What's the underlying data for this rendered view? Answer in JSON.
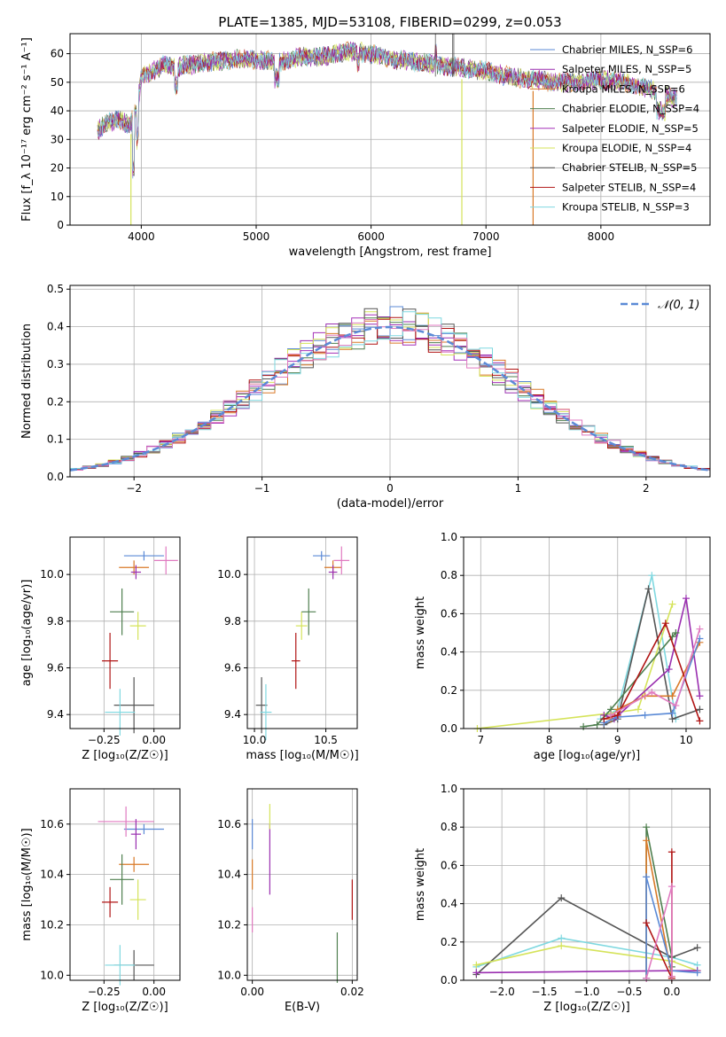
{
  "figure_title": "PLATE=1385, MJD=53108, FIBERID=0299, z=0.053",
  "colors": {
    "chabrier_miles": "#5b8ad6",
    "salpeter_miles": "#9a2fb0",
    "kroupa_miles": "#d97a28",
    "chabrier_elodie": "#4f7f4f",
    "salpeter_elodie": "#a531b8",
    "kroupa_elodie": "#d5e35a",
    "chabrier_stelib": "#555555",
    "salpeter_stelib": "#b01414",
    "kroupa_stelib": "#7fd8e0",
    "pink": "#e07ac0",
    "gaussian": "#5b8ad6"
  },
  "chart_data": [
    {
      "type": "line",
      "title": "PLATE=1385, MJD=53108, FIBERID=0299, z=0.053",
      "xlabel": "wavelength [Angstrom, rest frame]",
      "ylabel": "Flux [f_λ 10⁻¹⁷ erg cm⁻² s⁻¹ A⁻¹]",
      "xlim": [
        3380,
        8950
      ],
      "ylim": [
        0,
        67
      ],
      "xticks": [
        "4000",
        "5000",
        "6000",
        "7000",
        "8000"
      ],
      "yticks": [
        "0",
        "10",
        "20",
        "30",
        "40",
        "50",
        "60"
      ],
      "legend_position": "top-right",
      "legend": [
        "Chabrier MILES, N_SSP=6",
        "Salpeter MILES, N_SSP=5",
        "Kroupa MILES, N_SSP=6",
        "Chabrier ELODIE, N_SSP=4",
        "Salpeter ELODIE, N_SSP=5",
        "Kroupa ELODIE, N_SSP=4",
        "Chabrier STELIB, N_SSP=5",
        "Salpeter STELIB, N_SSP=4",
        "Kroupa STELIB, N_SSP=3"
      ],
      "continuum_x": [
        3620,
        3700,
        3800,
        3900,
        3960,
        4000,
        4100,
        4200,
        4300,
        4400,
        4600,
        4800,
        5000,
        5200,
        5400,
        5600,
        5800,
        6000,
        6200,
        6400,
        6600,
        6800,
        7000,
        7200,
        7400,
        7600,
        7800,
        8000,
        8200,
        8400,
        8660
      ],
      "continuum_y": [
        33,
        36,
        37,
        35,
        40,
        52,
        54,
        56,
        55,
        56,
        57,
        58,
        58,
        57,
        59,
        59,
        61,
        60,
        58,
        57,
        56,
        55,
        54,
        52,
        51,
        50,
        50,
        51,
        50,
        48,
        44
      ]
    },
    {
      "type": "step",
      "xlabel": "(data-model)/error",
      "ylabel": "Normed distribution",
      "xlim": [
        -2.5,
        2.5
      ],
      "ylim": [
        0,
        0.51
      ],
      "xticks": [
        "−2",
        "−1",
        "0",
        "1",
        "2"
      ],
      "yticks": [
        "0.0",
        "0.1",
        "0.2",
        "0.3",
        "0.4",
        "0.5"
      ],
      "legend": [
        "𝒩(0, 1)"
      ],
      "legend_position": "top-right",
      "bin_edges_start": -2.5,
      "bin_width": 0.1,
      "histograms": [
        {
          "values": [
            0.03,
            0.032,
            0.04,
            0.048,
            0.06,
            0.07,
            0.08,
            0.09,
            0.11,
            0.13,
            0.15,
            0.16,
            0.18,
            0.2,
            0.22,
            0.24,
            0.26,
            0.28,
            0.31,
            0.32,
            0.34,
            0.35,
            0.36,
            0.37,
            0.38,
            0.39,
            0.38,
            0.4,
            0.39,
            0.41,
            0.42,
            0.43,
            0.41,
            0.4,
            0.39,
            0.38,
            0.36,
            0.35,
            0.33,
            0.3,
            0.28,
            0.26,
            0.24,
            0.22,
            0.2,
            0.18,
            0.16,
            0.14,
            0.12,
            0.1
          ]
        },
        {
          "values": [
            0.035,
            0.03,
            0.045,
            0.055,
            0.065,
            0.072,
            0.085,
            0.1,
            0.12,
            0.14,
            0.16,
            0.17,
            0.19,
            0.21,
            0.23,
            0.25,
            0.27,
            0.29,
            0.3,
            0.33,
            0.33,
            0.36,
            0.37,
            0.38,
            0.37,
            0.4,
            0.39,
            0.41,
            0.4,
            0.42,
            0.44,
            0.41,
            0.42,
            0.4,
            0.38,
            0.37,
            0.35,
            0.34,
            0.32,
            0.29,
            0.27,
            0.25,
            0.23,
            0.21,
            0.19,
            0.17,
            0.15,
            0.13,
            0.11,
            0.09
          ]
        }
      ],
      "gaussian_mu": 0,
      "gaussian_sigma": 1
    },
    {
      "type": "scatter",
      "xlabel": "Z [log₁₀(Z/Z☉)]",
      "ylabel": "age  [log₁₀(age/yr)]",
      "xlim": [
        -0.42,
        0.13
      ],
      "ylim": [
        9.34,
        10.16
      ],
      "xticks": [
        "−0.25",
        "0.00"
      ],
      "yticks": [
        "9.4",
        "9.6",
        "9.8",
        "10.0"
      ],
      "points": [
        {
          "x": -0.05,
          "y": 10.08,
          "xerr": 0.2,
          "yerr": 0.02
        },
        {
          "x": -0.1,
          "y": 10.03,
          "xerr": 0.15,
          "yerr": 0.03
        },
        {
          "x": 0.06,
          "y": 10.06,
          "xerr": 0.12,
          "yerr": 0.06
        },
        {
          "x": -0.09,
          "y": 10.01,
          "xerr": 0.05,
          "yerr": 0.03
        },
        {
          "x": -0.08,
          "y": 9.78,
          "xerr": 0.08,
          "yerr": 0.06
        },
        {
          "x": -0.16,
          "y": 9.84,
          "xerr": 0.12,
          "yerr": 0.1
        },
        {
          "x": -0.22,
          "y": 9.63,
          "xerr": 0.08,
          "yerr": 0.12
        },
        {
          "x": -0.1,
          "y": 9.44,
          "xerr": 0.2,
          "yerr": 0.12
        },
        {
          "x": -0.17,
          "y": 9.41,
          "xerr": 0.15,
          "yerr": 0.1
        }
      ]
    },
    {
      "type": "scatter",
      "xlabel": "mass [log₁₀(M/M☉)]",
      "ylabel": "",
      "xlim": [
        9.95,
        10.72
      ],
      "ylim": [
        9.34,
        10.16
      ],
      "xticks": [
        "10.0",
        "10.5"
      ],
      "yticks": [
        "9.4",
        "9.6",
        "9.8",
        "10.0"
      ],
      "points": [
        {
          "x": 10.47,
          "y": 10.08,
          "xerr": 0.12,
          "yerr": 0.02
        },
        {
          "x": 10.55,
          "y": 10.03,
          "xerr": 0.12,
          "yerr": 0.03
        },
        {
          "x": 10.61,
          "y": 10.06,
          "xerr": 0.11,
          "yerr": 0.06
        },
        {
          "x": 10.55,
          "y": 10.01,
          "xerr": 0.06,
          "yerr": 0.03
        },
        {
          "x": 10.33,
          "y": 9.78,
          "xerr": 0.08,
          "yerr": 0.06
        },
        {
          "x": 10.38,
          "y": 9.84,
          "xerr": 0.1,
          "yerr": 0.1
        },
        {
          "x": 10.29,
          "y": 9.63,
          "xerr": 0.06,
          "yerr": 0.12
        },
        {
          "x": 10.05,
          "y": 9.44,
          "xerr": 0.08,
          "yerr": 0.12
        },
        {
          "x": 10.08,
          "y": 9.41,
          "xerr": 0.08,
          "yerr": 0.12
        }
      ]
    },
    {
      "type": "line",
      "xlabel": "age  [log₁₀(age/yr)]",
      "ylabel": "mass weight",
      "xlim": [
        6.75,
        10.35
      ],
      "ylim": [
        0,
        1
      ],
      "xticks": [
        "7",
        "8",
        "9",
        "10"
      ],
      "yticks": [
        "0.0",
        "0.2",
        "0.4",
        "0.6",
        "0.8",
        "1.0"
      ],
      "series": [
        {
          "x": [
            8.75,
            8.85,
            9.0,
            9.5,
            9.85
          ],
          "y": [
            0.05,
            0.07,
            0.1,
            0.8,
            0.05
          ]
        },
        {
          "x": [
            8.8,
            9.0,
            9.45,
            9.8,
            10.2
          ],
          "y": [
            0.02,
            0.05,
            0.73,
            0.05,
            0.1
          ]
        },
        {
          "x": [
            6.95,
            8.9,
            9.3,
            9.8
          ],
          "y": [
            0.0,
            0.08,
            0.1,
            0.65
          ]
        },
        {
          "x": [
            8.8,
            8.95,
            9.75,
            10.0,
            10.2
          ],
          "y": [
            0.07,
            0.05,
            0.31,
            0.68,
            0.17
          ]
        },
        {
          "x": [
            8.5,
            8.7,
            8.9,
            9.8,
            9.85
          ],
          "y": [
            0.01,
            0.02,
            0.1,
            0.48,
            0.5
          ]
        },
        {
          "x": [
            8.9,
            9.0,
            9.4,
            9.8,
            10.2
          ],
          "y": [
            0.05,
            0.1,
            0.17,
            0.17,
            0.45
          ]
        },
        {
          "x": [
            8.8,
            9.0,
            9.4,
            9.8,
            10.2
          ],
          "y": [
            0.03,
            0.06,
            0.07,
            0.08,
            0.47
          ]
        },
        {
          "x": [
            8.8,
            9.0,
            9.7,
            10.2
          ],
          "y": [
            0.05,
            0.07,
            0.55,
            0.04
          ]
        },
        {
          "x": [
            8.9,
            9.5,
            9.85,
            10.2
          ],
          "y": [
            0.07,
            0.19,
            0.12,
            0.52
          ]
        }
      ]
    },
    {
      "type": "scatter",
      "xlabel": "Z [log₁₀(Z/Z☉)]",
      "ylabel": "mass [log₁₀(M/M☉)]",
      "xlim": [
        -0.42,
        0.13
      ],
      "ylim": [
        9.98,
        10.74
      ],
      "xticks": [
        "−0.25",
        "0.00"
      ],
      "yticks": [
        "10.0",
        "10.2",
        "10.4",
        "10.6"
      ],
      "points": [
        {
          "x": -0.05,
          "y": 10.58,
          "xerr": 0.2,
          "yerr": 0.02
        },
        {
          "x": -0.1,
          "y": 10.44,
          "xerr": 0.15,
          "yerr": 0.03
        },
        {
          "x": -0.14,
          "y": 10.61,
          "xerr": 0.28,
          "yerr": 0.06
        },
        {
          "x": -0.09,
          "y": 10.56,
          "xerr": 0.05,
          "yerr": 0.06
        },
        {
          "x": -0.08,
          "y": 10.3,
          "xerr": 0.08,
          "yerr": 0.08
        },
        {
          "x": -0.16,
          "y": 10.38,
          "xerr": 0.12,
          "yerr": 0.1
        },
        {
          "x": -0.22,
          "y": 10.29,
          "xerr": 0.08,
          "yerr": 0.06
        },
        {
          "x": -0.1,
          "y": 10.04,
          "xerr": 0.2,
          "yerr": 0.06
        },
        {
          "x": -0.17,
          "y": 10.04,
          "xerr": 0.15,
          "yerr": 0.08
        }
      ]
    },
    {
      "type": "scatter",
      "xlabel": "E(B-V)",
      "ylabel": "",
      "xlim": [
        -0.001,
        0.021
      ],
      "ylim": [
        9.98,
        10.74
      ],
      "xticks": [
        "0.00",
        "0.02"
      ],
      "yticks": [
        "10.0",
        "10.2",
        "10.4",
        "10.6"
      ],
      "points": [
        {
          "x": 0.0,
          "y": 10.56,
          "yerr": 0.06
        },
        {
          "x": 0.0,
          "y": 10.4,
          "yerr": 0.06
        },
        {
          "x": 0.0,
          "y": 10.22,
          "yerr": 0.05
        },
        {
          "x": 0.0035,
          "y": 10.46,
          "yerr": 0.14
        },
        {
          "x": 0.0035,
          "y": 10.63,
          "yerr": 0.05
        },
        {
          "x": 0.017,
          "y": 10.07,
          "yerr": 0.1
        },
        {
          "x": 0.02,
          "y": 10.3,
          "yerr": 0.08
        }
      ]
    },
    {
      "type": "line",
      "xlabel": "Z [log₁₀(Z/Z☉)]",
      "ylabel": "mass weight",
      "xlim": [
        -2.45,
        0.45
      ],
      "ylim": [
        0,
        1
      ],
      "xticks": [
        "−2.0",
        "−1.5",
        "−1.0",
        "−0.5",
        "0.0"
      ],
      "yticks": [
        "0.0",
        "0.2",
        "0.4",
        "0.6",
        "0.8",
        "1.0"
      ],
      "series": [
        {
          "x": [
            -2.3,
            -1.3,
            0.0,
            0.3
          ],
          "y": [
            0.07,
            0.22,
            0.12,
            0.08
          ]
        },
        {
          "x": [
            -2.3,
            -1.3,
            0.0,
            0.3
          ],
          "y": [
            0.03,
            0.43,
            0.12,
            0.17
          ]
        },
        {
          "x": [
            -2.3,
            -1.3,
            0.0,
            0.3
          ],
          "y": [
            0.08,
            0.18,
            0.1,
            0.05
          ]
        },
        {
          "x": [
            -2.3,
            0.0,
            0.3
          ],
          "y": [
            0.04,
            0.05,
            0.05
          ]
        },
        {
          "x": [
            -0.3,
            -0.3,
            0.0,
            0.0
          ],
          "y": [
            0.01,
            0.8,
            0.12,
            0.07
          ]
        },
        {
          "x": [
            -0.3,
            -0.3,
            0.0
          ],
          "y": [
            0.01,
            0.73,
            0.02
          ]
        },
        {
          "x": [
            -0.3,
            -0.3,
            0.0,
            0.3
          ],
          "y": [
            0.01,
            0.54,
            0.05,
            0.04
          ]
        },
        {
          "x": [
            -0.3,
            0.0,
            0.0
          ],
          "y": [
            0.3,
            0.01,
            0.67
          ]
        },
        {
          "x": [
            -0.3,
            0.0,
            0.0
          ],
          "y": [
            0.01,
            0.49,
            0.02
          ]
        }
      ]
    }
  ]
}
